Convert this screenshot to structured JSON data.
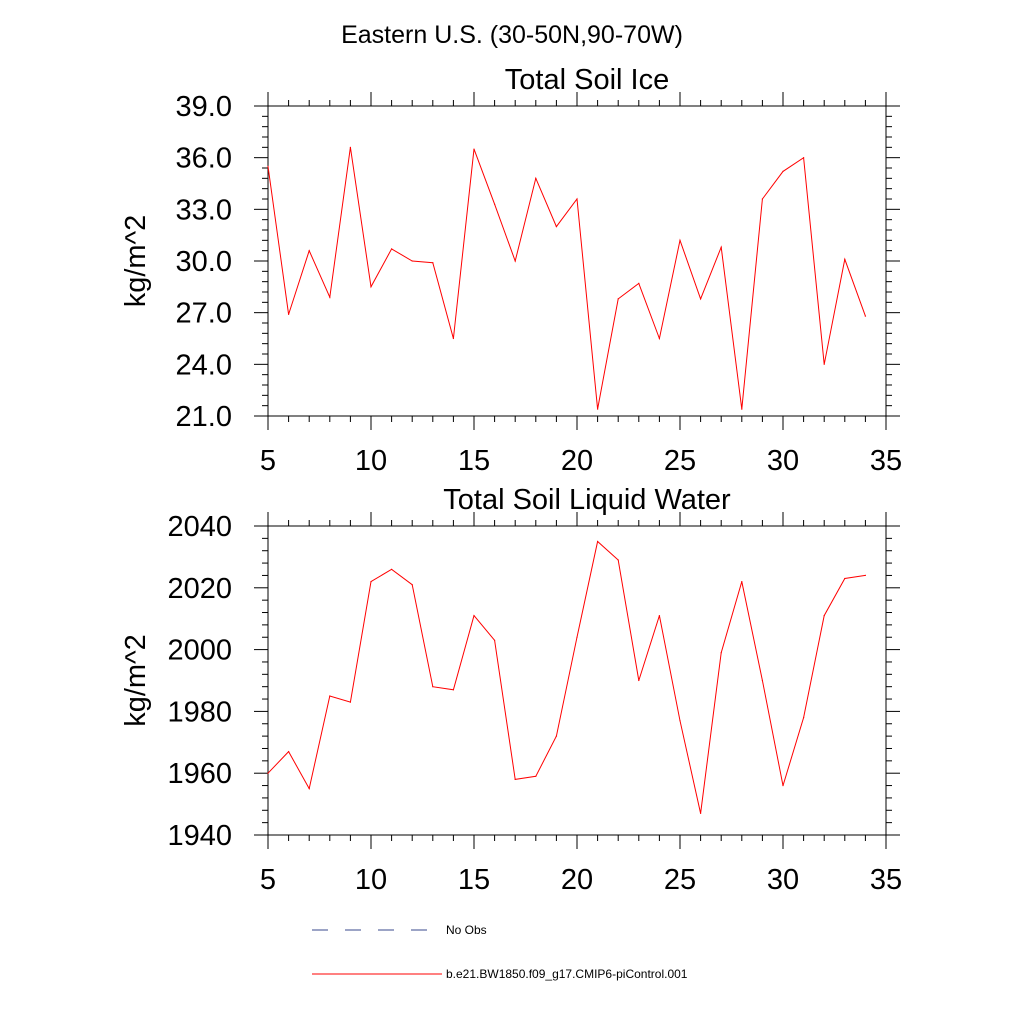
{
  "suptitle": "Eastern U.S. (30-50N,90-70W)",
  "colors": {
    "series": "#ff0000",
    "no_obs": "#3a4a8c",
    "axis": "#000000",
    "background": "#ffffff"
  },
  "chart_data": [
    {
      "type": "line",
      "title": "Total Soil Ice",
      "xlabel": "",
      "ylabel": "kg/m^2",
      "xlim": [
        5,
        35
      ],
      "ylim": [
        21,
        39
      ],
      "xticks": [
        5,
        10,
        15,
        20,
        25,
        30,
        35
      ],
      "xtick_labels": [
        "5",
        "10",
        "15",
        "20",
        "25",
        "30",
        "35"
      ],
      "yticks": [
        21,
        24,
        27,
        30,
        33,
        36,
        39
      ],
      "ytick_labels": [
        "21.0",
        "24.0",
        "27.0",
        "30.0",
        "33.0",
        "36.0",
        "39.0"
      ],
      "grid": false,
      "series": [
        {
          "name": "b.e21.BW1850.f09_g17.CMIP6-piControl.001",
          "x": [
            5,
            6,
            7,
            8,
            9,
            10,
            11,
            12,
            13,
            14,
            15,
            16,
            17,
            18,
            19,
            20,
            21,
            22,
            23,
            24,
            25,
            26,
            27,
            28,
            29,
            30,
            31,
            32,
            33,
            34
          ],
          "values": [
            35.5,
            26.9,
            30.6,
            27.9,
            36.6,
            28.5,
            30.7,
            30.0,
            29.9,
            25.5,
            36.5,
            33.3,
            30.0,
            34.8,
            32.0,
            33.6,
            21.4,
            27.8,
            28.7,
            25.5,
            31.2,
            27.8,
            30.8,
            21.4,
            33.6,
            35.2,
            36.0,
            24.0,
            30.1,
            26.8
          ]
        }
      ]
    },
    {
      "type": "line",
      "title": "Total Soil Liquid Water",
      "xlabel": "",
      "ylabel": "kg/m^2",
      "xlim": [
        5,
        35
      ],
      "ylim": [
        1940,
        2040
      ],
      "xticks": [
        5,
        10,
        15,
        20,
        25,
        30,
        35
      ],
      "xtick_labels": [
        "5",
        "10",
        "15",
        "20",
        "25",
        "30",
        "35"
      ],
      "yticks": [
        1940,
        1960,
        1980,
        2000,
        2020,
        2040
      ],
      "ytick_labels": [
        "1940",
        "1960",
        "1980",
        "2000",
        "2020",
        "2040"
      ],
      "grid": false,
      "series": [
        {
          "name": "b.e21.BW1850.f09_g17.CMIP6-piControl.001",
          "x": [
            5,
            6,
            7,
            8,
            9,
            10,
            11,
            12,
            13,
            14,
            15,
            16,
            17,
            18,
            19,
            20,
            21,
            22,
            23,
            24,
            25,
            26,
            27,
            28,
            29,
            30,
            31,
            32,
            33,
            34
          ],
          "values": [
            1960,
            1967,
            1955,
            1985,
            1983,
            2022,
            2026,
            2021,
            1988,
            1987,
            2011,
            2003,
            1958,
            1959,
            1972,
            2004,
            2035,
            2029,
            1990,
            2011,
            1977,
            1947,
            1999,
            2022,
            1990,
            1956,
            1978,
            2011,
            2023,
            2024
          ]
        }
      ]
    }
  ],
  "legend": {
    "placement": "bottom",
    "entries": [
      {
        "label": "No Obs",
        "style": "dashed",
        "color": "#3a4a8c"
      },
      {
        "label": "b.e21.BW1850.f09_g17.CMIP6-piControl.001",
        "style": "solid",
        "color": "#ff0000"
      }
    ]
  }
}
